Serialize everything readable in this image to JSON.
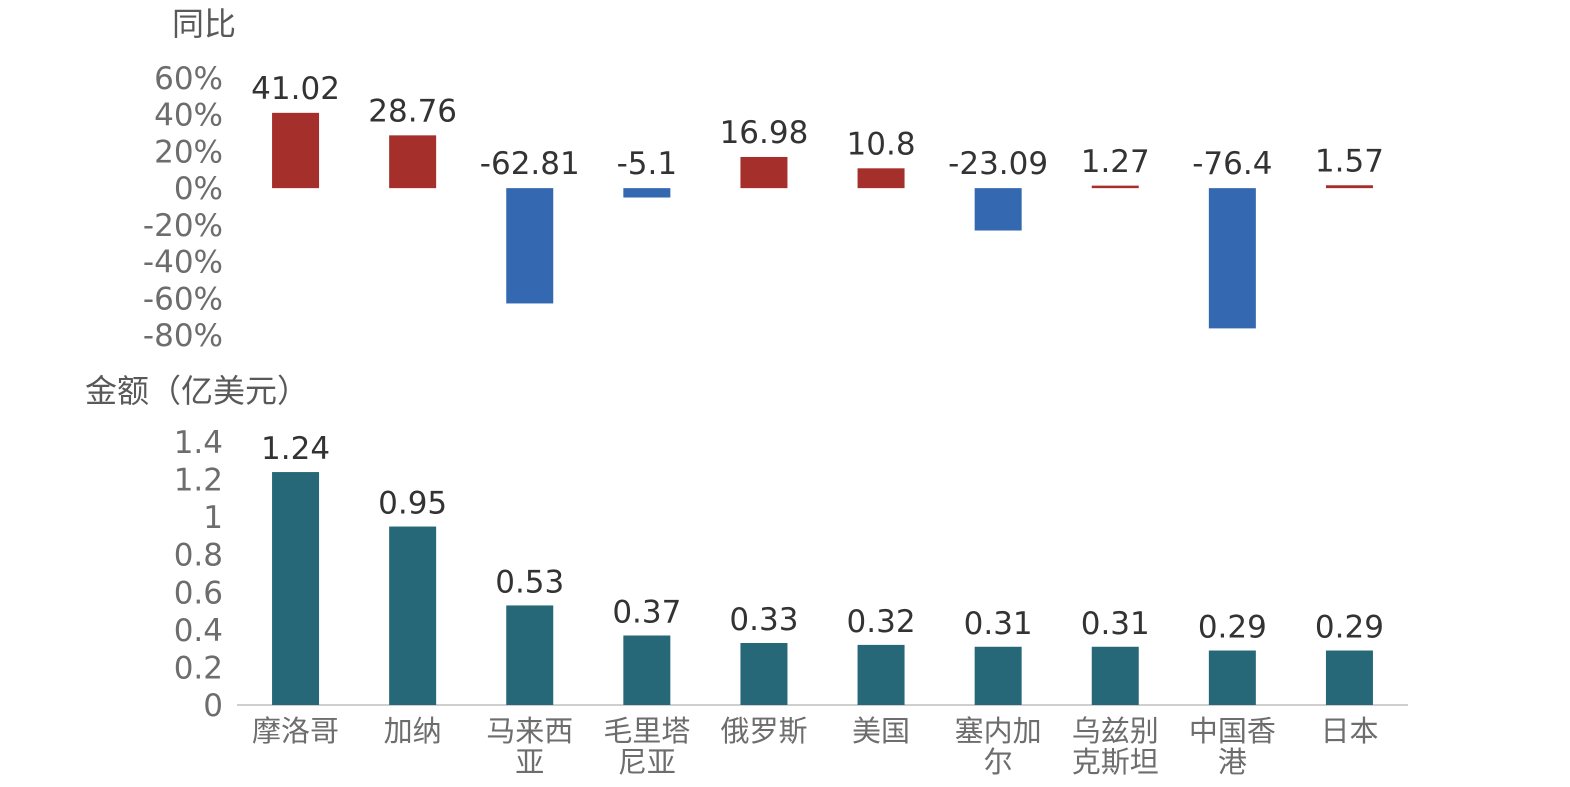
{
  "chart_data": [
    {
      "type": "bar",
      "title": "",
      "ylabel": "同比",
      "xlabel": "",
      "ylim": [
        -80,
        60
      ],
      "yticks": [
        "60%",
        "40%",
        "20%",
        "0%",
        "-20%",
        "-40%",
        "-60%",
        "-80%"
      ],
      "categories": [
        "摩洛哥",
        "加纳",
        "马来西亚",
        "毛里塔尼亚",
        "俄罗斯",
        "美国",
        "塞内加尔",
        "乌兹别克斯坦",
        "中国香港",
        "日本"
      ],
      "values": [
        41.02,
        28.76,
        -62.81,
        -5.1,
        16.98,
        10.8,
        -23.09,
        1.27,
        -76.4,
        1.57
      ],
      "data_labels": [
        "41.02",
        "28.76",
        "-62.81",
        "-5.1",
        "16.98",
        "10.8",
        "-23.09",
        "1.27",
        "-76.4",
        "1.57"
      ],
      "colors": {
        "positive": "#a5302b",
        "negative": "#3468b0"
      },
      "grid": false,
      "legend": "none"
    },
    {
      "type": "bar",
      "title": "",
      "ylabel": "金额（亿美元）",
      "xlabel": "",
      "ylim": [
        0,
        1.4
      ],
      "yticks": [
        "1.4",
        "1.2",
        "1",
        "0.8",
        "0.6",
        "0.4",
        "0.2",
        "0"
      ],
      "categories": [
        "摩洛哥",
        "加纳",
        "马来西亚",
        "毛里塔尼亚",
        "俄罗斯",
        "美国",
        "塞内加尔",
        "乌兹别克斯坦",
        "中国香港",
        "日本"
      ],
      "category_lines": [
        [
          "摩洛哥"
        ],
        [
          "加纳"
        ],
        [
          "马来西",
          "亚"
        ],
        [
          "毛里塔",
          "尼亚"
        ],
        [
          "俄罗斯"
        ],
        [
          "美国"
        ],
        [
          "塞内加",
          "尔"
        ],
        [
          "乌兹别",
          "克斯坦"
        ],
        [
          "中国香",
          "港"
        ],
        [
          "日本"
        ]
      ],
      "values": [
        1.24,
        0.95,
        0.53,
        0.37,
        0.33,
        0.32,
        0.31,
        0.31,
        0.29,
        0.29
      ],
      "data_labels": [
        "1.24",
        "0.95",
        "0.53",
        "0.37",
        "0.33",
        "0.32",
        "0.31",
        "0.31",
        "0.29",
        "0.29"
      ],
      "colors": {
        "bar": "#266878"
      },
      "grid": false,
      "legend": "none"
    }
  ]
}
